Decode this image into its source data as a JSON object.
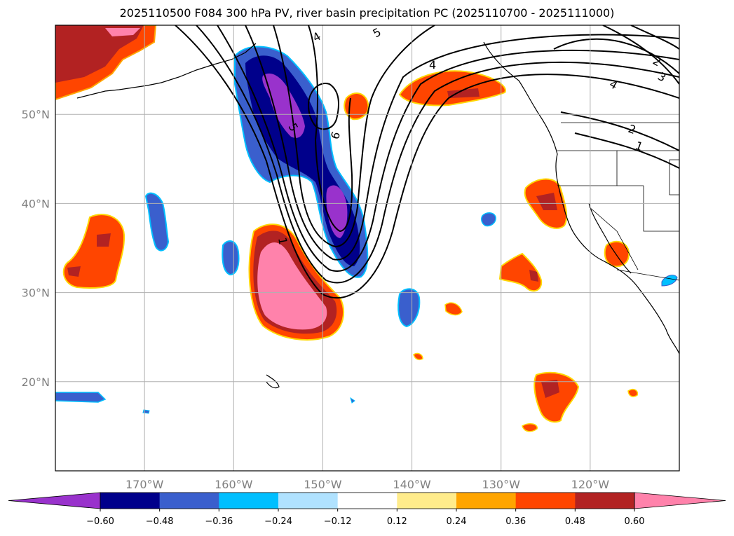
{
  "title": "2025110500 F084 300 hPa PV, river basin precipitation PC (2025110700 - 2025111000)",
  "map": {
    "lon_range": [
      -180,
      -110
    ],
    "lat_range": [
      10,
      60
    ],
    "lon_ticks": [
      {
        "value": -170,
        "label": "170°W"
      },
      {
        "value": -160,
        "label": "160°W"
      },
      {
        "value": -150,
        "label": "150°W"
      },
      {
        "value": -140,
        "label": "140°W"
      },
      {
        "value": -130,
        "label": "130°W"
      },
      {
        "value": -120,
        "label": "120°W"
      }
    ],
    "lat_ticks": [
      {
        "value": 20,
        "label": "20°N"
      },
      {
        "value": 30,
        "label": "30°N"
      },
      {
        "value": 40,
        "label": "40°N"
      },
      {
        "value": 50,
        "label": "50°N"
      }
    ],
    "grid": true,
    "pv_contour_labels": [
      "1",
      "2",
      "3",
      "4",
      "5",
      "6"
    ]
  },
  "colorbar": {
    "levels": [
      "−0.60",
      "−0.48",
      "−0.36",
      "−0.24",
      "−0.12",
      "0.12",
      "0.24",
      "0.36",
      "0.48",
      "0.60"
    ],
    "colors": [
      "#9932CC",
      "#00008B",
      "#3A5FCD",
      "#00BFFF",
      "#B0E2FF",
      "#FFFFFF",
      "#FFEC8B",
      "#FFA500",
      "#FF4500",
      "#B22222",
      "#FF82AB"
    ],
    "extend": "both"
  }
}
